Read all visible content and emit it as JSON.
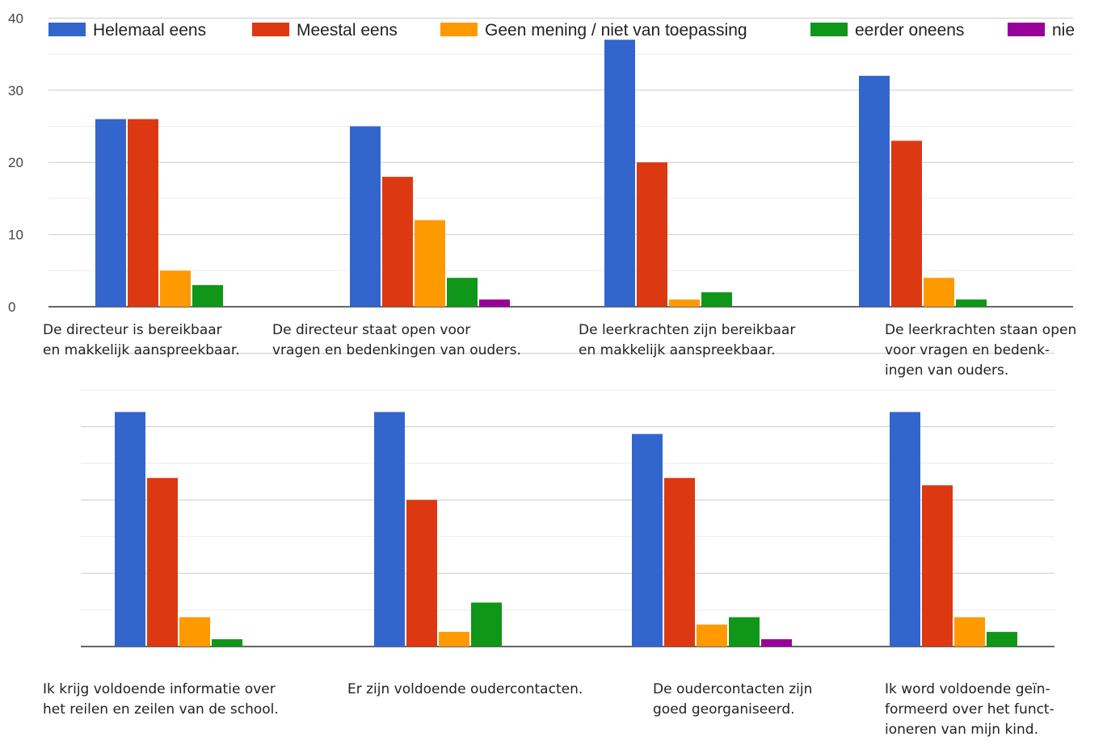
{
  "chart_data": {
    "type": "bar",
    "series_names": [
      "Helemaal eens",
      "Meestal eens",
      "Geen mening / niet van toepassing",
      "eerder oneens",
      "nie"
    ],
    "colors": [
      "#3366cc",
      "#dc3912",
      "#ff9900",
      "#109618",
      "#990099"
    ],
    "y_ticks": [
      "0",
      "10",
      "20",
      "30",
      "40"
    ],
    "ylim": [
      0,
      40
    ],
    "legend_position": "top",
    "grid": true,
    "panels": [
      {
        "categories": [
          "De directeur is bereikbaar\nen makkelijk aanspreekbaar.",
          "De directeur staat open voor\nvragen en bedenkingen van ouders.",
          "De leerkrachten zijn bereikbaar\nen makkelijk aanspreekbaar.",
          "De leerkrachten staan open\nvoor vragen en bedenk-\ningen van ouders."
        ],
        "values": [
          [
            26,
            26,
            5,
            3,
            0
          ],
          [
            25,
            18,
            12,
            4,
            1
          ],
          [
            37,
            20,
            1,
            2,
            0
          ],
          [
            32,
            23,
            4,
            1,
            0
          ]
        ]
      },
      {
        "categories": [
          "Ik krijg voldoende informatie over\nhet reilen en zeilen van de school.",
          "Er zijn voldoende oudercontacten.",
          "De oudercontacten zijn\ngoed georganiseerd.",
          "Ik word voldoende geïn-\nformeerd over het funct-\nioneren van mijn kind."
        ],
        "values": [
          [
            32,
            23,
            4,
            1,
            0
          ],
          [
            32,
            20,
            2,
            6,
            0
          ],
          [
            29,
            23,
            3,
            4,
            1
          ],
          [
            32,
            22,
            4,
            2,
            0
          ]
        ]
      }
    ]
  }
}
